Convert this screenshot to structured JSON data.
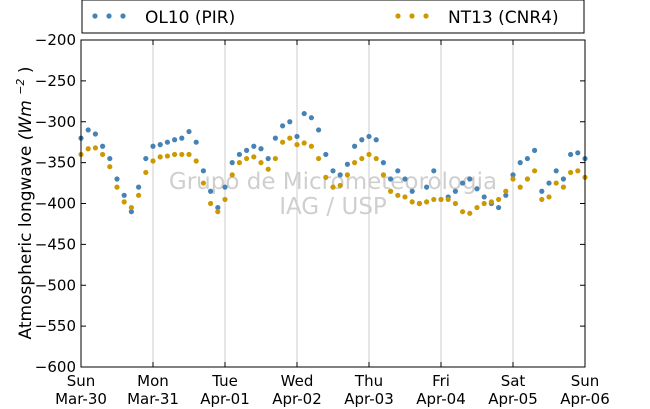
{
  "chart_data": {
    "type": "scatter",
    "xlabel": "",
    "ylabel_text": "Atmospheric longwave",
    "ylabel_units": "(Wm",
    "ylabel_exp": "−2",
    "ylim": [
      -600,
      -200
    ],
    "yticks": [
      -200,
      -250,
      -300,
      -350,
      -400,
      -450,
      -500,
      -550,
      -600
    ],
    "ytick_labels": [
      "−200",
      "−250",
      "−300",
      "−350",
      "−400",
      "−450",
      "−500",
      "−550",
      "−600"
    ],
    "xlim_days": [
      0,
      7
    ],
    "x_ticks": [
      {
        "day": 0,
        "label1": "Sun",
        "label2": "Mar-30"
      },
      {
        "day": 1,
        "label1": "Mon",
        "label2": "Mar-31"
      },
      {
        "day": 2,
        "label1": "Tue",
        "label2": "Apr-01"
      },
      {
        "day": 3,
        "label1": "Wed",
        "label2": "Apr-02"
      },
      {
        "day": 4,
        "label1": "Thu",
        "label2": "Apr-03"
      },
      {
        "day": 5,
        "label1": "Fri",
        "label2": "Apr-04"
      },
      {
        "day": 6,
        "label1": "Sat",
        "label2": "Apr-05"
      },
      {
        "day": 7,
        "label1": "Sun",
        "label2": "Apr-06"
      }
    ],
    "grid": "vertical",
    "legend_position": "top",
    "watermark": [
      "Grupo de Micrometeorologia",
      "IAG / USP"
    ],
    "series": [
      {
        "name": "OL10 (PIR)",
        "color": "#4682b4",
        "x": [
          0,
          0.1,
          0.2,
          0.3,
          0.4,
          0.5,
          0.6,
          0.7,
          0.8,
          0.9,
          1.0,
          1.1,
          1.2,
          1.3,
          1.4,
          1.5,
          1.6,
          1.7,
          1.8,
          1.9,
          2.0,
          2.1,
          2.2,
          2.3,
          2.4,
          2.5,
          2.6,
          2.7,
          2.8,
          2.9,
          3.0,
          3.1,
          3.2,
          3.3,
          3.4,
          3.5,
          3.6,
          3.7,
          3.8,
          3.9,
          4.0,
          4.1,
          4.2,
          4.3,
          4.4,
          4.5,
          4.6,
          4.7,
          4.8,
          4.9,
          5.0,
          5.1,
          5.2,
          5.3,
          5.4,
          5.5,
          5.6,
          5.7,
          5.8,
          5.9,
          6.0,
          6.1,
          6.2,
          6.3,
          6.4,
          6.5,
          6.6,
          6.7,
          6.8,
          6.9,
          7.0
        ],
        "y": [
          -320,
          -310,
          -315,
          -330,
          -345,
          -370,
          -390,
          -410,
          -380,
          -345,
          -330,
          -328,
          -325,
          -322,
          -320,
          -312,
          -325,
          -360,
          -385,
          -405,
          -380,
          -350,
          -340,
          -335,
          -330,
          -333,
          -345,
          -320,
          -305,
          -300,
          -318,
          -290,
          -295,
          -310,
          -340,
          -360,
          -365,
          -352,
          -330,
          -322,
          -318,
          -322,
          -350,
          -370,
          -360,
          -370,
          -385,
          -400,
          -380,
          -360,
          -395,
          -392,
          -385,
          -375,
          -370,
          -382,
          -392,
          -400,
          -405,
          -390,
          -365,
          -350,
          -345,
          -335,
          -385,
          -375,
          -360,
          -370,
          -340,
          -338,
          -345
        ]
      },
      {
        "name": "NT13 (CNR4)",
        "color": "#cc9900",
        "x": [
          0,
          0.1,
          0.2,
          0.3,
          0.4,
          0.5,
          0.6,
          0.7,
          0.8,
          0.9,
          1.0,
          1.1,
          1.2,
          1.3,
          1.4,
          1.5,
          1.6,
          1.7,
          1.8,
          1.9,
          2.0,
          2.1,
          2.2,
          2.3,
          2.4,
          2.5,
          2.6,
          2.7,
          2.8,
          2.9,
          3.0,
          3.1,
          3.2,
          3.3,
          3.4,
          3.5,
          3.6,
          3.7,
          3.8,
          3.9,
          4.0,
          4.1,
          4.2,
          4.3,
          4.4,
          4.5,
          4.6,
          4.7,
          4.8,
          4.9,
          5.0,
          5.1,
          5.2,
          5.3,
          5.4,
          5.5,
          5.6,
          5.7,
          5.8,
          5.9,
          6.0,
          6.1,
          6.2,
          6.3,
          6.4,
          6.5,
          6.6,
          6.7,
          6.8,
          6.9,
          7.0
        ],
        "y": [
          -340,
          -333,
          -332,
          -340,
          -355,
          -380,
          -398,
          -405,
          -390,
          -362,
          -348,
          -343,
          -342,
          -340,
          -340,
          -340,
          -348,
          -375,
          -400,
          -410,
          -395,
          -365,
          -350,
          -345,
          -343,
          -350,
          -358,
          -345,
          -325,
          -320,
          -328,
          -326,
          -330,
          -345,
          -368,
          -380,
          -378,
          -365,
          -350,
          -345,
          -340,
          -345,
          -365,
          -385,
          -390,
          -392,
          -398,
          -400,
          -398,
          -395,
          -395,
          -395,
          -400,
          -410,
          -412,
          -405,
          -400,
          -398,
          -395,
          -385,
          -370,
          -380,
          -370,
          -360,
          -395,
          -392,
          -375,
          -380,
          -362,
          -360,
          -368
        ]
      }
    ]
  }
}
